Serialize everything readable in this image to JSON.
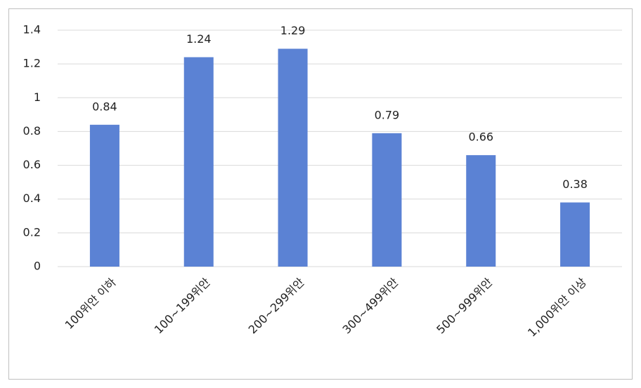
{
  "chart_data": {
    "type": "bar",
    "categories": [
      "100위안 이하",
      "100~199위안",
      "200~299위안",
      "300~499위안",
      "500~999위안",
      "1,000위안 이상"
    ],
    "values": [
      0.84,
      1.24,
      1.29,
      0.79,
      0.66,
      0.38
    ],
    "color": "#5b82d4",
    "ylim": [
      0,
      1.4
    ],
    "yticks": [
      0,
      0.2,
      0.4,
      0.6,
      0.8,
      1,
      1.2,
      1.4
    ],
    "grid": true
  }
}
